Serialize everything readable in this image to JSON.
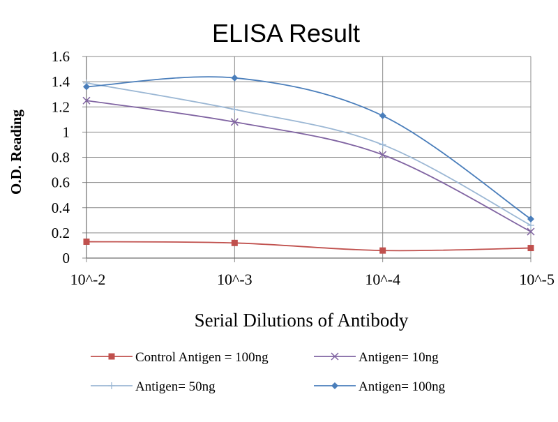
{
  "chart_data": {
    "type": "line",
    "title": "ELISA Result",
    "xlabel": "Serial Dilutions  of Antibody",
    "ylabel": "O.D. Reading",
    "categories": [
      "10^-2",
      "10^-3",
      "10^-4",
      "10^-5"
    ],
    "ylim": [
      0,
      1.6
    ],
    "yticks": [
      "0",
      "0.2",
      "0.4",
      "0.6",
      "0.8",
      "1",
      "1.2",
      "1.4",
      "1.6"
    ],
    "grid": true,
    "legend_position": "bottom",
    "series": [
      {
        "name": "Control Antigen = 100ng",
        "values": [
          0.13,
          0.12,
          0.06,
          0.08
        ],
        "color": "#c0504d",
        "marker": "square"
      },
      {
        "name": "Antigen= 10ng",
        "values": [
          1.25,
          1.08,
          0.82,
          0.21
        ],
        "color": "#8064a2",
        "marker": "x"
      },
      {
        "name": "Antigen= 50ng",
        "values": [
          1.39,
          1.18,
          0.9,
          0.26
        ],
        "color": "#9bb7d4",
        "marker": "plus"
      },
      {
        "name": "Antigen= 100ng",
        "values": [
          1.36,
          1.43,
          1.13,
          0.31
        ],
        "color": "#4a7ebb",
        "marker": "diamond"
      }
    ]
  }
}
